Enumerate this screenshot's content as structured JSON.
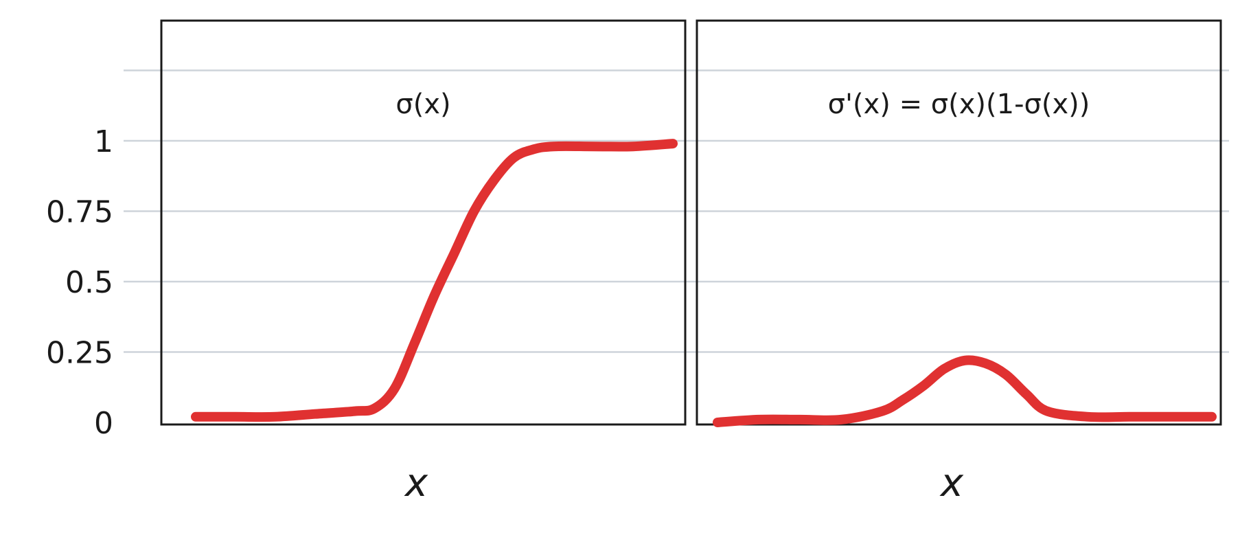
{
  "chart_data": {
    "type": "line",
    "ylim": [
      0,
      1.25
    ],
    "yticks": [
      {
        "value": 0,
        "label": "0"
      },
      {
        "value": 0.25,
        "label": "0.25"
      },
      {
        "value": 0.5,
        "label": "0.5"
      },
      {
        "value": 0.75,
        "label": "0.75"
      },
      {
        "value": 1,
        "label": "1"
      }
    ],
    "grid": true,
    "line_color": "#e03131",
    "grid_color": "#ced4da",
    "frame_color": "#1a1a1a",
    "panels": [
      {
        "title": "σ(x)",
        "xlabel": "x",
        "x": [
          -6,
          -5,
          -4,
          -3,
          -2,
          -1.5,
          -1,
          -0.5,
          0,
          0.5,
          1,
          1.5,
          2,
          2.5,
          3,
          4,
          5,
          6
        ],
        "y": [
          0.02,
          0.02,
          0.02,
          0.03,
          0.04,
          0.05,
          0.12,
          0.28,
          0.45,
          0.6,
          0.75,
          0.86,
          0.94,
          0.97,
          0.98,
          0.98,
          0.98,
          0.99
        ]
      },
      {
        "title": "σ'(x) = σ(x)(1-σ(x))",
        "xlabel": "x",
        "x": [
          -6,
          -5,
          -4,
          -3,
          -2,
          -1.5,
          -1,
          -0.5,
          0,
          0.5,
          1,
          1.5,
          2,
          3,
          4,
          5,
          6
        ],
        "y": [
          0.0,
          0.01,
          0.01,
          0.01,
          0.04,
          0.08,
          0.13,
          0.19,
          0.22,
          0.21,
          0.17,
          0.1,
          0.04,
          0.02,
          0.02,
          0.02,
          0.02
        ]
      }
    ]
  }
}
